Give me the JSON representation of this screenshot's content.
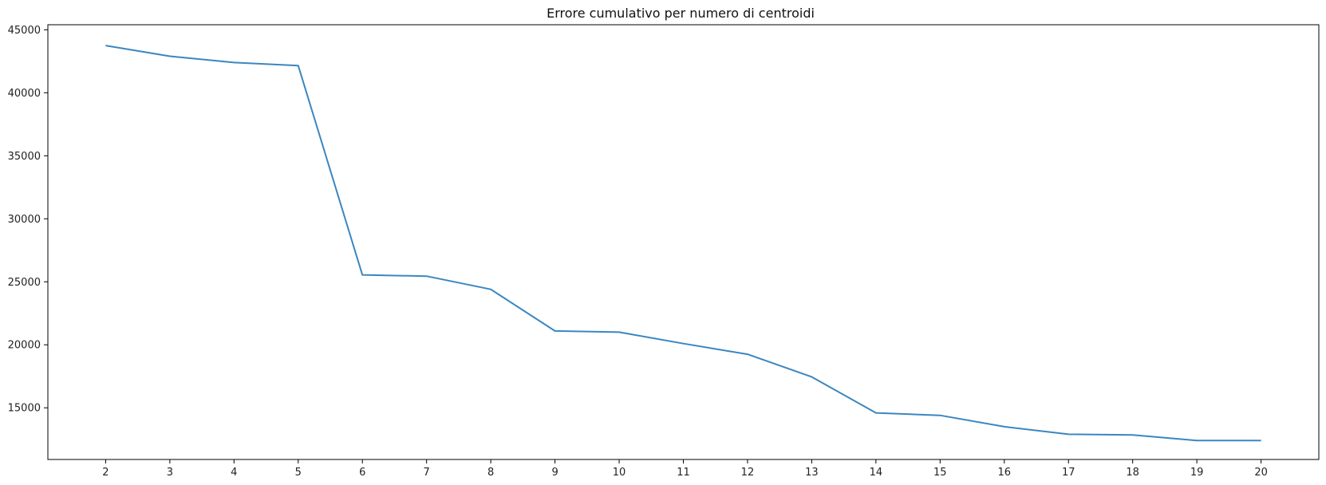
{
  "chart_data": {
    "type": "line",
    "title": "Errore cumulativo per numero di centroidi",
    "xlabel": "",
    "ylabel": "",
    "x": [
      2,
      3,
      4,
      5,
      6,
      7,
      8,
      9,
      10,
      11,
      12,
      13,
      14,
      15,
      16,
      17,
      18,
      19,
      20
    ],
    "series": [
      {
        "values": [
          43750,
          42900,
          42400,
          42150,
          25550,
          25450,
          24400,
          21100,
          21000,
          20100,
          19250,
          17450,
          14600,
          14400,
          13500,
          12900,
          12850,
          12400,
          12400
        ],
        "color": "#3b86c0"
      }
    ],
    "xlim": [
      1.1,
      20.9
    ],
    "ylim": [
      10900,
      45400
    ],
    "xticks": [
      "2",
      "3",
      "4",
      "5",
      "6",
      "7",
      "8",
      "9",
      "10",
      "11",
      "12",
      "13",
      "14",
      "15",
      "16",
      "17",
      "18",
      "19",
      "20"
    ],
    "yticks": [
      15000,
      20000,
      25000,
      30000,
      35000,
      40000,
      45000
    ],
    "ytick_labels": [
      "15000",
      "20000",
      "25000",
      "30000",
      "35000",
      "40000",
      "45000"
    ],
    "grid": false,
    "legend": "none"
  }
}
